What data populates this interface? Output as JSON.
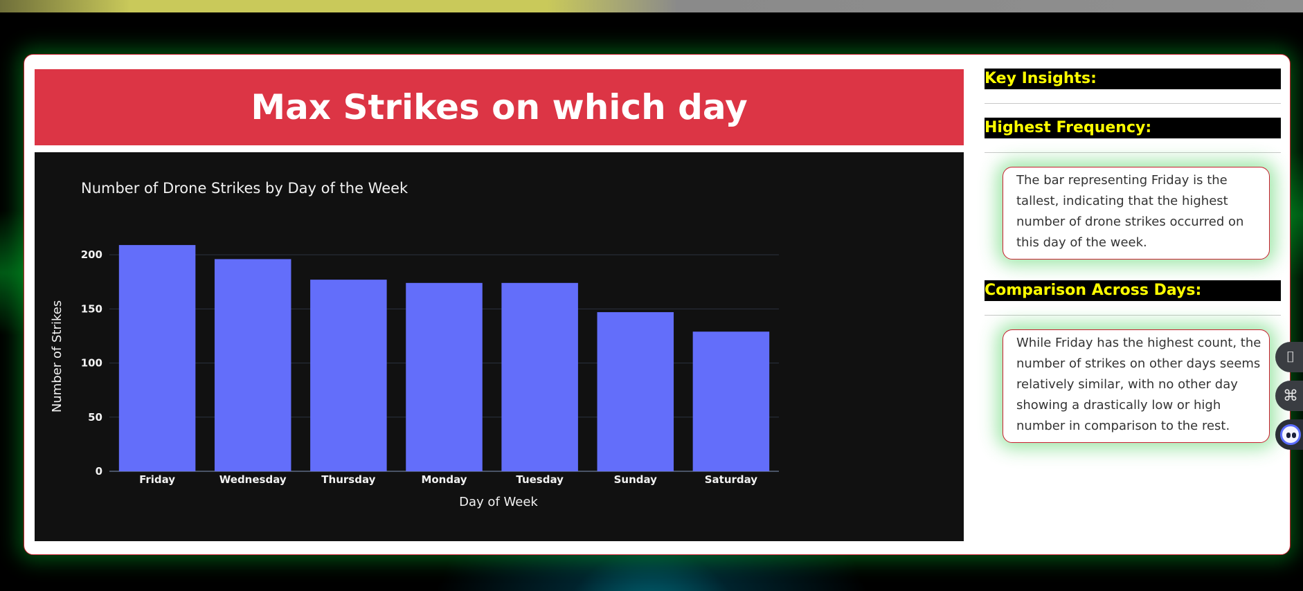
{
  "header": {
    "title": "Max Strikes on which day"
  },
  "chart_data": {
    "type": "bar",
    "title": "Number of Drone Strikes by Day of the Week",
    "xlabel": "Day of Week",
    "ylabel": "Number of Strikes",
    "categories": [
      "Friday",
      "Wednesday",
      "Thursday",
      "Monday",
      "Tuesday",
      "Sunday",
      "Saturday"
    ],
    "values": [
      209,
      196,
      177,
      174,
      174,
      147,
      129
    ],
    "ylim": [
      0,
      218
    ],
    "yticks": [
      0,
      50,
      100,
      150,
      200
    ],
    "grid": true,
    "bar_color": "#636efa",
    "background": "#111111"
  },
  "insights": {
    "key_heading": "Key Insights:",
    "sections": [
      {
        "heading": "Highest Frequency:",
        "text": "The bar representing Friday is the tallest, indicating that the highest number of drone strikes occurred on this day of the week."
      },
      {
        "heading": "Comparison Across Days:",
        "text": "While Friday has the highest count, the number of strikes on other days seems relatively similar, with no other day showing a drastically low or high number in comparison to the rest."
      }
    ]
  },
  "side_tools": [
    {
      "icon": "book-icon",
      "glyph": "⌷"
    },
    {
      "icon": "command-icon",
      "glyph": "⌘"
    },
    {
      "icon": "assistant-bot-icon",
      "glyph": ""
    }
  ],
  "colors": {
    "title_banner": "#dc3545",
    "insight_heading_bg": "#000000",
    "insight_heading_text": "#ffff00",
    "card_border": "#c81e2e"
  }
}
